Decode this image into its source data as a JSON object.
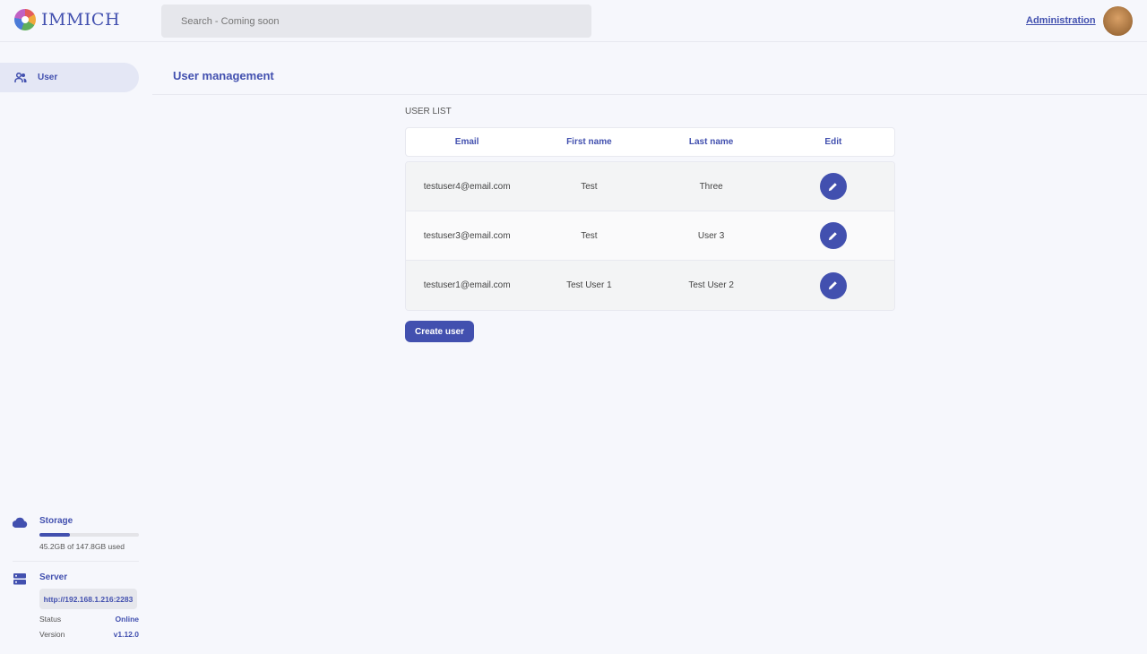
{
  "header": {
    "logo_text": "IMMICH",
    "search_placeholder": "Search - Coming soon",
    "admin_link": "Administration"
  },
  "sidebar": {
    "items": [
      {
        "label": "User",
        "icon": "users-icon"
      }
    ],
    "storage": {
      "title": "Storage",
      "used": "45.2GB of 147.8GB used",
      "used_fraction": 0.306
    },
    "server": {
      "title": "Server",
      "url": "http://192.168.1.216:2283",
      "status_label": "Status",
      "status": "Online",
      "version_label": "Version",
      "version": "v1.12.0"
    }
  },
  "main": {
    "title": "User management",
    "list_label": "USER LIST",
    "columns": [
      "Email",
      "First name",
      "Last name",
      "Edit"
    ],
    "rows": [
      {
        "email": "testuser4@email.com",
        "first": "Test",
        "last": "Three"
      },
      {
        "email": "testuser3@email.com",
        "first": "Test",
        "last": "User 3"
      },
      {
        "email": "testuser1@email.com",
        "first": "Test User 1",
        "last": "Test User 2"
      }
    ],
    "create_button": "Create user"
  },
  "colors": {
    "accent": "#4250af"
  }
}
